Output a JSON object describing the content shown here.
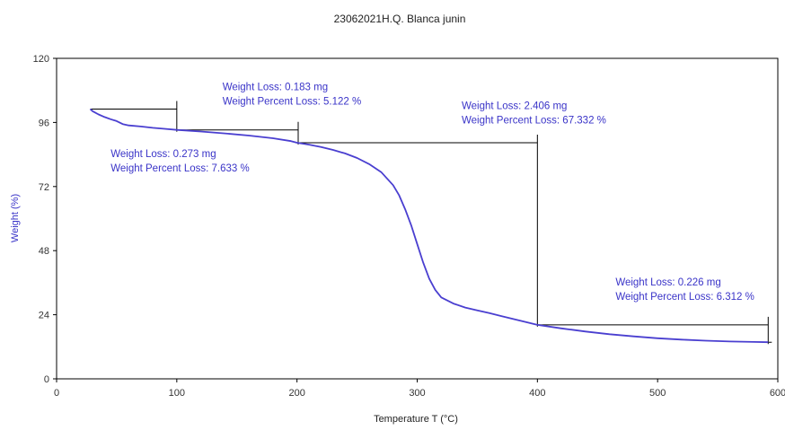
{
  "chart_data": {
    "type": "line",
    "title": "23062021H.Q. Blanca junin",
    "xlabel": "Temperature T (°C)",
    "ylabel": "Weight (%)",
    "xlim": [
      0,
      600
    ],
    "ylim": [
      0,
      120
    ],
    "x_ticks": [
      0,
      100,
      200,
      300,
      400,
      500,
      600
    ],
    "y_ticks": [
      0,
      24,
      48,
      72,
      96,
      120
    ],
    "grid": false,
    "colors": {
      "curve": "#4a3fd0",
      "text": "#3a34c8",
      "step": "#000000",
      "frame": "#000000"
    },
    "series": [
      {
        "values": [
          [
            28,
            101
          ],
          [
            30,
            100.2
          ],
          [
            35,
            99.0
          ],
          [
            40,
            98.0
          ],
          [
            45,
            97.2
          ],
          [
            50,
            96.5
          ],
          [
            55,
            95.4
          ],
          [
            60,
            94.9
          ],
          [
            70,
            94.5
          ],
          [
            80,
            94.0
          ],
          [
            90,
            93.6
          ],
          [
            100,
            93.2
          ],
          [
            120,
            92.6
          ],
          [
            140,
            91.9
          ],
          [
            160,
            91.1
          ],
          [
            180,
            90.1
          ],
          [
            195,
            89.0
          ],
          [
            200,
            88.4
          ],
          [
            210,
            87.7
          ],
          [
            220,
            86.8
          ],
          [
            230,
            85.7
          ],
          [
            240,
            84.4
          ],
          [
            250,
            82.7
          ],
          [
            260,
            80.4
          ],
          [
            270,
            77.4
          ],
          [
            280,
            72.5
          ],
          [
            285,
            68.7
          ],
          [
            290,
            63.5
          ],
          [
            295,
            57.5
          ],
          [
            300,
            50.5
          ],
          [
            305,
            43.5
          ],
          [
            310,
            37.5
          ],
          [
            315,
            33.3
          ],
          [
            320,
            30.5
          ],
          [
            330,
            28.2
          ],
          [
            340,
            26.7
          ],
          [
            350,
            25.6
          ],
          [
            360,
            24.6
          ],
          [
            370,
            23.5
          ],
          [
            380,
            22.4
          ],
          [
            390,
            21.3
          ],
          [
            400,
            20.2
          ],
          [
            420,
            18.9
          ],
          [
            440,
            17.7
          ],
          [
            460,
            16.7
          ],
          [
            480,
            15.9
          ],
          [
            500,
            15.2
          ],
          [
            520,
            14.7
          ],
          [
            540,
            14.3
          ],
          [
            560,
            14.0
          ],
          [
            580,
            13.8
          ],
          [
            592,
            13.7
          ]
        ]
      }
    ],
    "step_markers": [
      {
        "x1": 28,
        "x2": 100,
        "y_top": 101,
        "y_bottom": 93.2
      },
      {
        "x1": 100,
        "x2": 201,
        "y_top": 93.2,
        "y_bottom": 88.4
      },
      {
        "x1": 201,
        "x2": 400,
        "y_top": 88.4,
        "y_bottom": 20.2
      },
      {
        "x1": 400,
        "x2": 592,
        "y_top": 20.2,
        "y_bottom": 13.7
      }
    ],
    "annotations": [
      {
        "line1": "Weight Loss: 0.273 mg",
        "line2": "Weight Percent Loss: 7.633 %",
        "x": 45,
        "y": 83,
        "anchor": "start"
      },
      {
        "line1": "Weight Loss: 0.183 mg",
        "line2": "Weight Percent Loss: 5.122 %",
        "x": 138,
        "y": 108,
        "anchor": "start"
      },
      {
        "line1": "Weight Loss: 2.406 mg",
        "line2": "Weight Percent Loss: 67.332 %",
        "x": 337,
        "y": 101,
        "anchor": "start"
      },
      {
        "line1": "Weight Loss: 0.226 mg",
        "line2": "Weight Percent Loss: 6.312 %",
        "x": 465,
        "y": 35,
        "anchor": "start"
      }
    ]
  }
}
